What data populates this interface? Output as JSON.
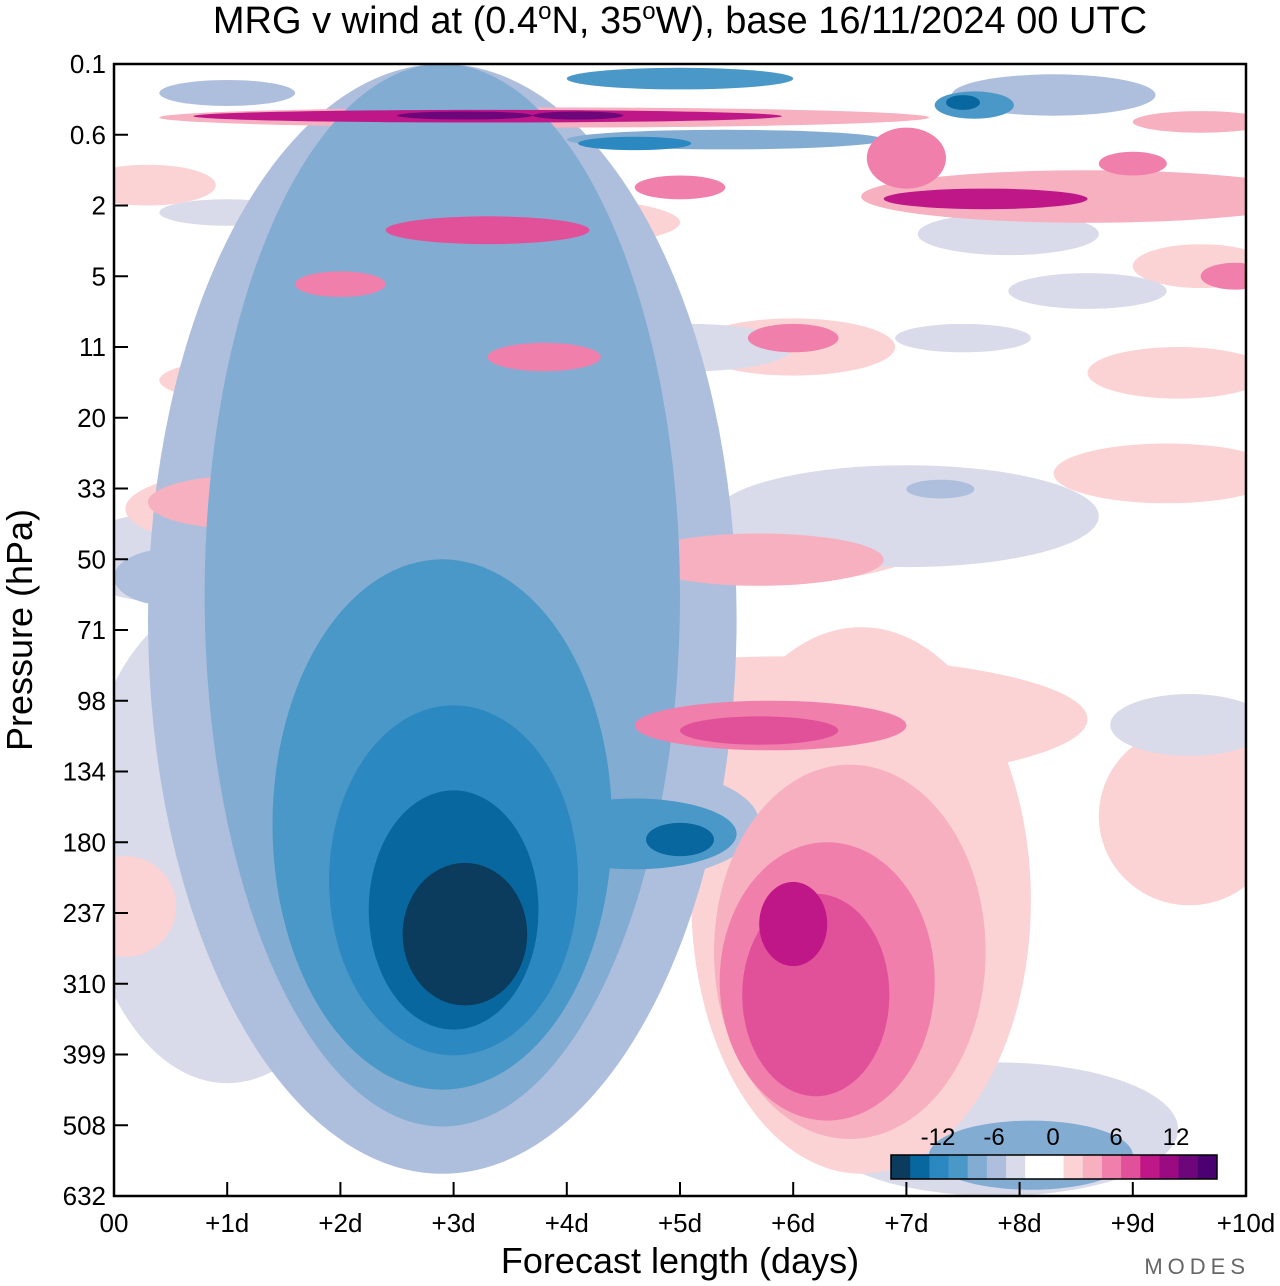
{
  "chart_data": {
    "type": "heatmap",
    "title": {
      "parts": [
        {
          "text": "MRG v wind at (0.4",
          "sup": false
        },
        {
          "text": "o",
          "sup": true
        },
        {
          "text": "N, 35",
          "sup": false
        },
        {
          "text": "o",
          "sup": true
        },
        {
          "text": "W),  base 16/11/2024  00 UTC",
          "sup": false
        }
      ]
    },
    "xlabel": "Forecast length (days)",
    "ylabel": "Pressure (hPa)",
    "x_ticks": [
      "00",
      "+1d",
      "+2d",
      "+3d",
      "+4d",
      "+5d",
      "+6d",
      "+7d",
      "+8d",
      "+9d",
      "+10d"
    ],
    "y_ticks": [
      "0.1",
      "0.6",
      "2",
      "5",
      "11",
      "20",
      "33",
      "50",
      "71",
      "98",
      "134",
      "180",
      "237",
      "310",
      "399",
      "508",
      "632"
    ],
    "y_scale": "log-pressure",
    "colorbar": {
      "labels": [
        "-12",
        "-6",
        "0",
        "6",
        "12"
      ],
      "colors": [
        "#0b3c5d",
        "#08679f",
        "#2b88c0",
        "#4a98c7",
        "#83acd3",
        "#aebfdd",
        "#d9dbea",
        "#ffffff",
        "#ffffff",
        "#fbd3d4",
        "#f7b0bf",
        "#f17fac",
        "#e1519a",
        "#c01788",
        "#9a0a80",
        "#6d067a",
        "#4a0070"
      ]
    },
    "blobs": [
      {
        "sign": "neg",
        "level": 1,
        "x": 1.0,
        "p": 250,
        "rx": 1.3,
        "ry": 190
      },
      {
        "sign": "neg",
        "level": 2,
        "x": 2.9,
        "p": 260,
        "rx": 2.6,
        "ry": 330
      },
      {
        "sign": "neg",
        "level": 3,
        "x": 2.9,
        "p": 250,
        "rx": 2.1,
        "ry": 260
      },
      {
        "sign": "neg",
        "level": 4,
        "x": 2.9,
        "p": 250,
        "rx": 1.5,
        "ry": 200
      },
      {
        "sign": "neg",
        "level": 5,
        "x": 3.0,
        "p": 250,
        "rx": 1.1,
        "ry": 150
      },
      {
        "sign": "neg",
        "level": 6,
        "x": 3.0,
        "p": 255,
        "rx": 0.75,
        "ry": 110
      },
      {
        "sign": "neg",
        "level": 7,
        "x": 3.1,
        "p": 265,
        "rx": 0.55,
        "ry": 70
      },
      {
        "sign": "neg",
        "level": 2,
        "x": 4.4,
        "p": 170,
        "rx": 1.3,
        "ry": 40
      },
      {
        "sign": "neg",
        "level": 4,
        "x": 4.6,
        "p": 175,
        "rx": 0.9,
        "ry": 25
      },
      {
        "sign": "neg",
        "level": 6,
        "x": 5.0,
        "p": 178,
        "rx": 0.3,
        "ry": 12
      },
      {
        "sign": "neg",
        "level": 1,
        "x": 7.8,
        "p": 560,
        "rx": 1.6,
        "ry": 150
      },
      {
        "sign": "neg",
        "level": 3,
        "x": 8.1,
        "p": 560,
        "rx": 0.9,
        "ry": 60
      },
      {
        "sign": "neg",
        "level": 5,
        "x": 8.0,
        "p": 580,
        "rx": 0.3,
        "ry": 20
      },
      {
        "sign": "pos",
        "level": 1,
        "x": 6.6,
        "p": 330,
        "rx": 1.5,
        "ry": 260
      },
      {
        "sign": "pos",
        "level": 2,
        "x": 6.5,
        "p": 330,
        "rx": 1.2,
        "ry": 200
      },
      {
        "sign": "pos",
        "level": 3,
        "x": 6.3,
        "p": 340,
        "rx": 0.95,
        "ry": 160
      },
      {
        "sign": "pos",
        "level": 4,
        "x": 6.2,
        "p": 340,
        "rx": 0.65,
        "ry": 120
      },
      {
        "sign": "pos",
        "level": 5,
        "x": 6.0,
        "p": 250,
        "rx": 0.3,
        "ry": 40
      },
      {
        "sign": "pos",
        "level": 1,
        "x": 6.0,
        "p": 110,
        "rx": 2.6,
        "ry": 30
      },
      {
        "sign": "pos",
        "level": 3,
        "x": 5.8,
        "p": 110,
        "rx": 1.2,
        "ry": 12
      },
      {
        "sign": "pos",
        "level": 4,
        "x": 5.7,
        "p": 112,
        "rx": 0.7,
        "ry": 7
      },
      {
        "sign": "pos",
        "level": 1,
        "x": 0.1,
        "p": 235,
        "rx": 0.45,
        "ry": 45
      },
      {
        "sign": "neg",
        "level": 1,
        "x": 0.5,
        "p": 50,
        "rx": 0.9,
        "ry": 12
      },
      {
        "sign": "neg",
        "level": 2,
        "x": 0.5,
        "p": 55,
        "rx": 0.5,
        "ry": 8
      },
      {
        "sign": "pos",
        "level": 1,
        "x": 1.6,
        "p": 38,
        "rx": 1.5,
        "ry": 10
      },
      {
        "sign": "pos",
        "level": 2,
        "x": 1.2,
        "p": 36,
        "rx": 0.9,
        "ry": 6
      },
      {
        "sign": "pos",
        "level": 1,
        "x": 5.5,
        "p": 46,
        "rx": 1.7,
        "ry": 11
      },
      {
        "sign": "pos",
        "level": 2,
        "x": 5.7,
        "p": 50,
        "rx": 1.1,
        "ry": 7
      },
      {
        "sign": "neg",
        "level": 1,
        "x": 3.5,
        "p": 28,
        "rx": 1.7,
        "ry": 8
      },
      {
        "sign": "neg",
        "level": 1,
        "x": 7.0,
        "p": 40,
        "rx": 1.7,
        "ry": 12
      },
      {
        "sign": "neg",
        "level": 2,
        "x": 7.3,
        "p": 33,
        "rx": 0.3,
        "ry": 2
      },
      {
        "sign": "pos",
        "level": 1,
        "x": 1.9,
        "p": 15,
        "rx": 1.5,
        "ry": 3.5
      },
      {
        "sign": "pos",
        "level": 1,
        "x": 3.6,
        "p": 12,
        "rx": 1.2,
        "ry": 3
      },
      {
        "sign": "pos",
        "level": 3,
        "x": 3.8,
        "p": 12,
        "rx": 0.5,
        "ry": 1.5
      },
      {
        "sign": "pos",
        "level": 1,
        "x": 6.0,
        "p": 11,
        "rx": 0.9,
        "ry": 3
      },
      {
        "sign": "pos",
        "level": 3,
        "x": 6.0,
        "p": 10,
        "rx": 0.4,
        "ry": 1.5
      },
      {
        "sign": "neg",
        "level": 1,
        "x": 5.1,
        "p": 11,
        "rx": 0.9,
        "ry": 2.5
      },
      {
        "sign": "neg",
        "level": 1,
        "x": 2.8,
        "p": 13,
        "rx": 1.3,
        "ry": 3
      },
      {
        "sign": "neg",
        "level": 2,
        "x": 2.7,
        "p": 13,
        "rx": 0.6,
        "ry": 1.5
      },
      {
        "sign": "pos",
        "level": 1,
        "x": 2.0,
        "p": 5,
        "rx": 1.0,
        "ry": 1.6
      },
      {
        "sign": "pos",
        "level": 3,
        "x": 2.0,
        "p": 5.5,
        "rx": 0.4,
        "ry": 0.8
      },
      {
        "sign": "pos",
        "level": 1,
        "x": 3.6,
        "p": 2.6,
        "rx": 1.4,
        "ry": 0.9
      },
      {
        "sign": "pos",
        "level": 4,
        "x": 3.3,
        "p": 2.8,
        "rx": 0.9,
        "ry": 0.5
      },
      {
        "sign": "pos",
        "level": 3,
        "x": 5.0,
        "p": 1.5,
        "rx": 0.4,
        "ry": 0.3
      },
      {
        "sign": "pos",
        "level": 2,
        "x": 8.6,
        "p": 1.8,
        "rx": 2.0,
        "ry": 0.7
      },
      {
        "sign": "pos",
        "level": 5,
        "x": 7.7,
        "p": 1.8,
        "rx": 0.9,
        "ry": 0.3
      },
      {
        "sign": "pos",
        "level": 1,
        "x": 9.6,
        "p": 4.5,
        "rx": 0.6,
        "ry": 1.2
      },
      {
        "sign": "pos",
        "level": 3,
        "x": 9.9,
        "p": 5,
        "rx": 0.3,
        "ry": 0.8
      },
      {
        "sign": "neg",
        "level": 1,
        "x": 8.6,
        "p": 6,
        "rx": 0.7,
        "ry": 1.2
      },
      {
        "sign": "neg",
        "level": 1,
        "x": 7.5,
        "p": 10,
        "rx": 0.6,
        "ry": 1.5
      },
      {
        "sign": "pos",
        "level": 1,
        "x": 9.3,
        "p": 30,
        "rx": 1.0,
        "ry": 6
      },
      {
        "sign": "pos",
        "level": 1,
        "x": 9.5,
        "p": 170,
        "rx": 0.8,
        "ry": 60
      },
      {
        "sign": "neg",
        "level": 1,
        "x": 9.5,
        "p": 110,
        "rx": 0.7,
        "ry": 15
      },
      {
        "sign": "pos",
        "level": 1,
        "x": 9.4,
        "p": 14,
        "rx": 0.8,
        "ry": 3
      },
      {
        "sign": "pos",
        "level": 1,
        "x": 0.3,
        "p": 1.5,
        "rx": 0.6,
        "ry": 0.5
      },
      {
        "sign": "neg",
        "level": 1,
        "x": 1.0,
        "p": 2.2,
        "rx": 0.6,
        "ry": 0.4
      },
      {
        "sign": "neg",
        "level": 1,
        "x": 7.9,
        "p": 3,
        "rx": 0.8,
        "ry": 0.8
      },
      {
        "sign": "neg",
        "level": 2,
        "x": 8.3,
        "p": 0.25,
        "rx": 0.9,
        "ry": 0.12
      },
      {
        "sign": "neg",
        "level": 4,
        "x": 7.6,
        "p": 0.3,
        "rx": 0.35,
        "ry": 0.1
      },
      {
        "sign": "neg",
        "level": 6,
        "x": 7.5,
        "p": 0.27,
        "rx": 0.15,
        "ry": 0.05
      },
      {
        "sign": "neg",
        "level": 2,
        "x": 1.0,
        "p": 0.22,
        "rx": 0.6,
        "ry": 0.07
      },
      {
        "sign": "neg",
        "level": 4,
        "x": 5.0,
        "p": 0.15,
        "rx": 1.0,
        "ry": 0.04
      },
      {
        "sign": "neg",
        "level": 3,
        "x": 5.4,
        "p": 0.65,
        "rx": 1.4,
        "ry": 0.12
      },
      {
        "sign": "neg",
        "level": 5,
        "x": 4.6,
        "p": 0.7,
        "rx": 0.5,
        "ry": 0.08
      },
      {
        "sign": "pos",
        "level": 2,
        "x": 3.8,
        "p": 0.4,
        "rx": 3.4,
        "ry": 0.1
      },
      {
        "sign": "pos",
        "level": 5,
        "x": 3.3,
        "p": 0.38,
        "rx": 2.6,
        "ry": 0.06
      },
      {
        "sign": "pos",
        "level": 7,
        "x": 3.1,
        "p": 0.37,
        "rx": 0.6,
        "ry": 0.03
      },
      {
        "sign": "pos",
        "level": 7,
        "x": 4.1,
        "p": 0.37,
        "rx": 0.4,
        "ry": 0.03
      },
      {
        "sign": "pos",
        "level": 2,
        "x": 9.6,
        "p": 0.45,
        "rx": 0.6,
        "ry": 0.12
      },
      {
        "sign": "pos",
        "level": 3,
        "x": 7.0,
        "p": 1.0,
        "rx": 0.35,
        "ry": 0.5
      },
      {
        "sign": "pos",
        "level": 3,
        "x": 9.0,
        "p": 1.0,
        "rx": 0.3,
        "ry": 0.2
      }
    ]
  },
  "watermark": "MODES"
}
